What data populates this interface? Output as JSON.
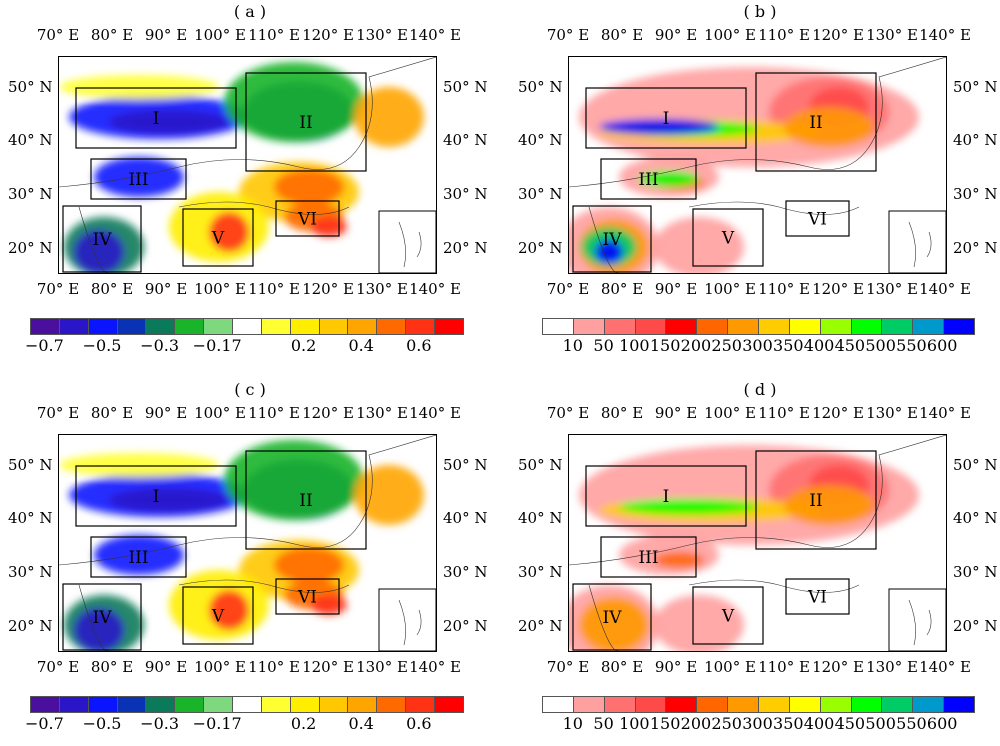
{
  "panels": [
    {
      "id": "a",
      "title": "( a )",
      "type": "correlation"
    },
    {
      "id": "b",
      "title": "( b )",
      "type": "amount"
    },
    {
      "id": "c",
      "title": "( c )",
      "type": "correlation"
    },
    {
      "id": "d",
      "title": "( d )",
      "type": "amount"
    }
  ],
  "lon_labels": [
    "70° E",
    "80° E",
    "90° E",
    "100° E",
    "110° E",
    "120° E",
    "130° E",
    "140° E"
  ],
  "lat_labels": [
    "50° N",
    "40° N",
    "30° N",
    "20° N"
  ],
  "regions": [
    "I",
    "II",
    "III",
    "IV",
    "V",
    "VI"
  ],
  "colorbars": {
    "correlation": {
      "colors": [
        "#4b0f9e",
        "#2a16c8",
        "#0a14ff",
        "#0a32b4",
        "#0b7a5a",
        "#19b42a",
        "#7ed87e",
        "#ffffff",
        "#ffff32",
        "#ffee00",
        "#ffc800",
        "#ffa500",
        "#ff6a00",
        "#ff3214",
        "#ff0000"
      ],
      "labels": [
        "−0.7",
        "−0.5",
        "−0.3",
        "−0.17",
        "0.2",
        "0.4",
        "0.6"
      ]
    },
    "amount": {
      "colors": [
        "#ffffff",
        "#ffa0a0",
        "#ff7070",
        "#ff4a4a",
        "#ff0000",
        "#ff6600",
        "#ff9900",
        "#ffcc00",
        "#ffff00",
        "#99ff00",
        "#00ff00",
        "#00cc66",
        "#0099cc",
        "#0000ff"
      ],
      "labels": [
        "10",
        "50",
        "100",
        "150",
        "200",
        "250",
        "300",
        "350",
        "400",
        "450",
        "500",
        "550",
        "600"
      ]
    }
  }
}
